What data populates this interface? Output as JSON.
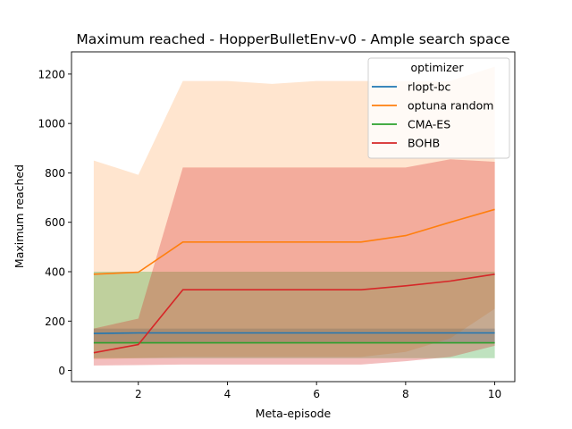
{
  "chart_data": {
    "type": "line",
    "title": "Maximum reached - HopperBulletEnv-v0 - Ample search space",
    "xlabel": "Meta-episode",
    "ylabel": "Maximum reached",
    "xlim": [
      0.5,
      10.45
    ],
    "ylim": [
      -45,
      1290
    ],
    "xticks": [
      2,
      4,
      6,
      8,
      10
    ],
    "yticks": [
      0,
      200,
      400,
      600,
      800,
      1000,
      1200
    ],
    "grid": false,
    "legend": {
      "title": "optimizer",
      "placement": "top-right"
    },
    "x": [
      1,
      2,
      3,
      4,
      5,
      6,
      7,
      8,
      9,
      10
    ],
    "series": [
      {
        "name": "rlopt-bc",
        "color": "#1f77b4",
        "values": [
          150,
          152,
          152,
          152,
          152,
          152,
          152,
          152,
          152,
          152
        ],
        "lower": [
          110,
          110,
          110,
          110,
          110,
          110,
          110,
          110,
          110,
          110
        ],
        "upper": [
          170,
          170,
          170,
          170,
          170,
          170,
          170,
          170,
          170,
          170
        ]
      },
      {
        "name": "optuna random",
        "color": "#ff7f0e",
        "values": [
          390,
          398,
          520,
          520,
          520,
          520,
          520,
          546,
          600,
          652
        ],
        "lower": [
          45,
          50,
          55,
          55,
          55,
          55,
          55,
          75,
          130,
          250
        ],
        "upper": [
          850,
          792,
          1172,
          1172,
          1160,
          1172,
          1172,
          1172,
          1172,
          1230
        ]
      },
      {
        "name": "CMA-ES",
        "color": "#2ca02c",
        "values": [
          112,
          112,
          112,
          112,
          112,
          112,
          112,
          112,
          112,
          112
        ],
        "lower": [
          50,
          50,
          50,
          50,
          50,
          50,
          50,
          50,
          50,
          50
        ],
        "upper": [
          400,
          400,
          400,
          400,
          400,
          400,
          400,
          400,
          400,
          400
        ]
      },
      {
        "name": "BOHB",
        "color": "#d62728",
        "values": [
          72,
          105,
          327,
          327,
          327,
          327,
          327,
          343,
          362,
          390
        ],
        "lower": [
          20,
          22,
          24,
          24,
          24,
          24,
          24,
          38,
          55,
          100
        ],
        "upper": [
          170,
          210,
          822,
          822,
          822,
          822,
          822,
          822,
          855,
          845
        ]
      }
    ]
  }
}
